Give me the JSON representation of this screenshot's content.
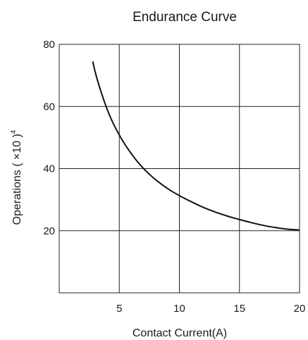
{
  "chart_data": {
    "type": "line",
    "title": "Endurance Curve",
    "xlabel": "Contact Current(A)",
    "ylabel": {
      "text": "Operations ( ×10 )",
      "exponent": "4"
    },
    "xlim": [
      0,
      20
    ],
    "ylim": [
      0,
      80
    ],
    "xticks": [
      5,
      10,
      15,
      20
    ],
    "yticks": [
      20,
      40,
      60,
      80
    ],
    "grid": true,
    "series": [
      {
        "x": [
          2.8,
          3,
          3.5,
          4,
          4.5,
          5,
          5.5,
          6,
          6.5,
          7,
          7.5,
          8,
          9,
          10,
          11,
          12,
          13,
          14,
          15,
          16,
          17,
          18,
          19,
          20
        ],
        "y": [
          74.5,
          71,
          64.5,
          59,
          54.5,
          50.8,
          47.6,
          44.8,
          42.3,
          40.1,
          38.2,
          36.5,
          33.6,
          31.3,
          29.3,
          27.5,
          26,
          24.7,
          23.6,
          22.6,
          21.7,
          21,
          20.5,
          20.2
        ]
      }
    ]
  }
}
